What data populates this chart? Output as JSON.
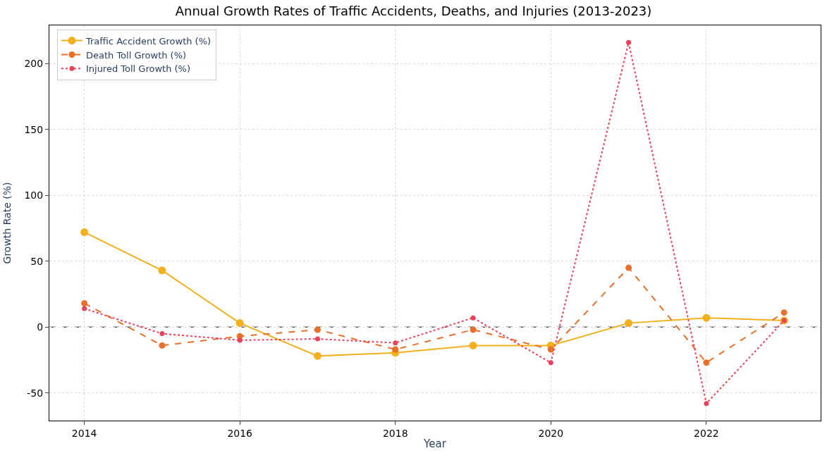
{
  "chart_data": {
    "type": "line",
    "title": "Annual Growth Rates of Traffic Accidents, Deaths, and Injuries (2013-2023)",
    "xlabel": "Year",
    "ylabel": "Growth Rate (%)",
    "x": [
      2014,
      2015,
      2016,
      2017,
      2018,
      2019,
      2020,
      2021,
      2022,
      2023
    ],
    "series": [
      {
        "name": "Traffic Accident Growth (%)",
        "color": "#f2b01e",
        "line_style": "solid",
        "values": [
          72,
          43,
          3,
          -22,
          -19.5,
          -14,
          -14,
          3,
          7,
          5
        ]
      },
      {
        "name": "Death Toll Growth (%)",
        "color": "#e8702a",
        "line_style": "dashed",
        "values": [
          18,
          -14,
          -7,
          -2,
          -17,
          -2,
          -17,
          45,
          -27,
          11
        ]
      },
      {
        "name": "Injured Toll Growth (%)",
        "color": "#e8435a",
        "line_style": "dotted",
        "values": [
          14,
          -5,
          -10,
          -9,
          -12,
          7,
          -27,
          216,
          -58,
          5
        ]
      }
    ],
    "xlim": [
      2013.55,
      2023.47
    ],
    "xticks": [
      2014,
      2016,
      2018,
      2020,
      2022
    ],
    "ylim": [
      -71,
      229
    ],
    "yticks": [
      -50,
      0,
      50,
      100,
      150,
      200
    ],
    "ref_lines": [
      {
        "axis": "y",
        "value": 0,
        "label": null,
        "color": "#000000",
        "line_style": "dashed"
      }
    ],
    "grid": true,
    "legend": "top left",
    "marker": "circle"
  }
}
